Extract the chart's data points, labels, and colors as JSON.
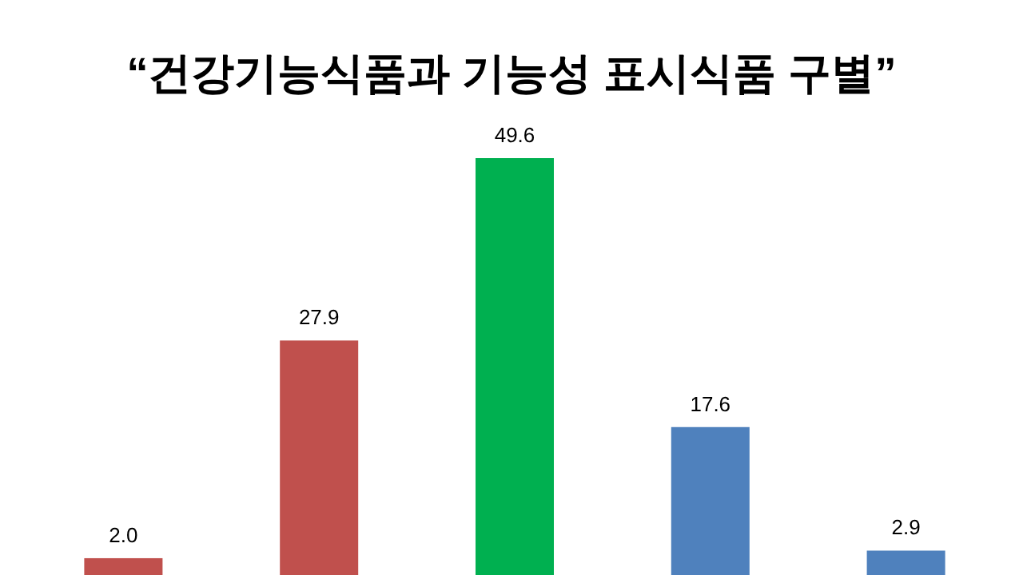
{
  "chart_data": {
    "type": "bar",
    "title": "“건강기능식품과 기능성 표시식품 구별”",
    "categories": [
      null,
      null,
      null,
      null,
      null
    ],
    "values": [
      2.0,
      27.9,
      49.6,
      17.6,
      2.9
    ],
    "value_labels": [
      "2.0",
      "27.9",
      "49.6",
      "17.6",
      "2.9"
    ],
    "colors": [
      "#c0504d",
      "#c0504d",
      "#00b050",
      "#4f81bd",
      "#4f81bd"
    ],
    "ylim": [
      0,
      49.6
    ]
  }
}
